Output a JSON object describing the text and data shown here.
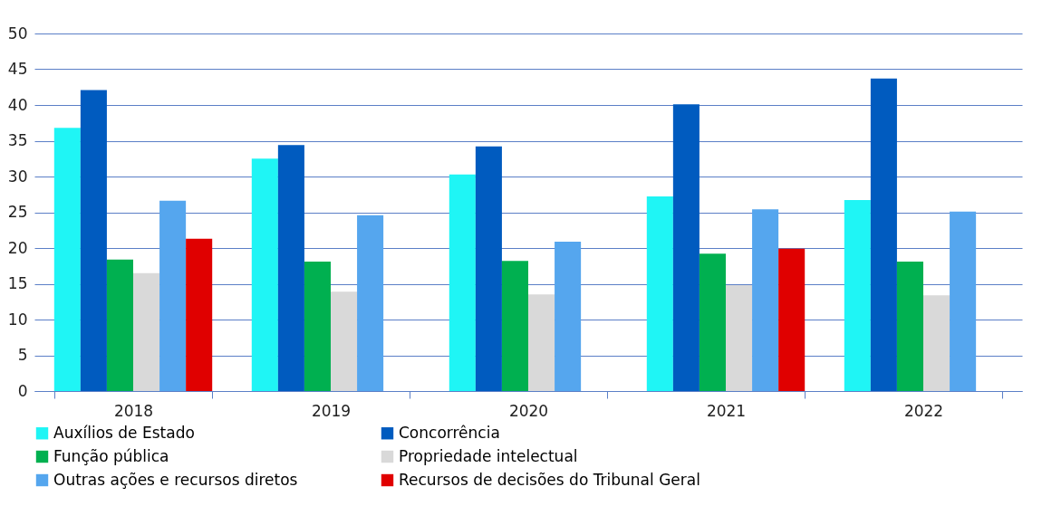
{
  "chart_data": {
    "type": "bar",
    "categories": [
      "2018",
      "2019",
      "2020",
      "2021",
      "2022"
    ],
    "series": [
      {
        "name": "Auxílios de Estado",
        "color": "#1ff5f5",
        "values": [
          36.8,
          32.5,
          30.3,
          27.2,
          26.7
        ]
      },
      {
        "name": "Concorrência",
        "color": "#005bbf",
        "values": [
          42.1,
          34.4,
          34.2,
          40.1,
          43.7
        ]
      },
      {
        "name": "Função pública",
        "color": "#00b050",
        "values": [
          18.4,
          18.1,
          18.2,
          19.2,
          18.1
        ]
      },
      {
        "name": "Propriedade intelectual",
        "color": "#d9d9d9",
        "values": [
          16.5,
          13.9,
          13.5,
          14.8,
          13.4
        ]
      },
      {
        "name": "Outras ações e recursos diretos",
        "color": "#55a6ee",
        "values": [
          26.6,
          24.6,
          20.9,
          25.4,
          25.1
        ]
      },
      {
        "name": "Recursos de decisões do Tribunal Geral",
        "color": "#e00000",
        "values": [
          21.3,
          null,
          null,
          19.9,
          null
        ]
      }
    ],
    "ylim": [
      0,
      50
    ],
    "yticks": [
      0,
      5,
      10,
      15,
      20,
      25,
      30,
      35,
      40,
      45,
      50
    ],
    "grid": "y",
    "legend": "bottom"
  }
}
